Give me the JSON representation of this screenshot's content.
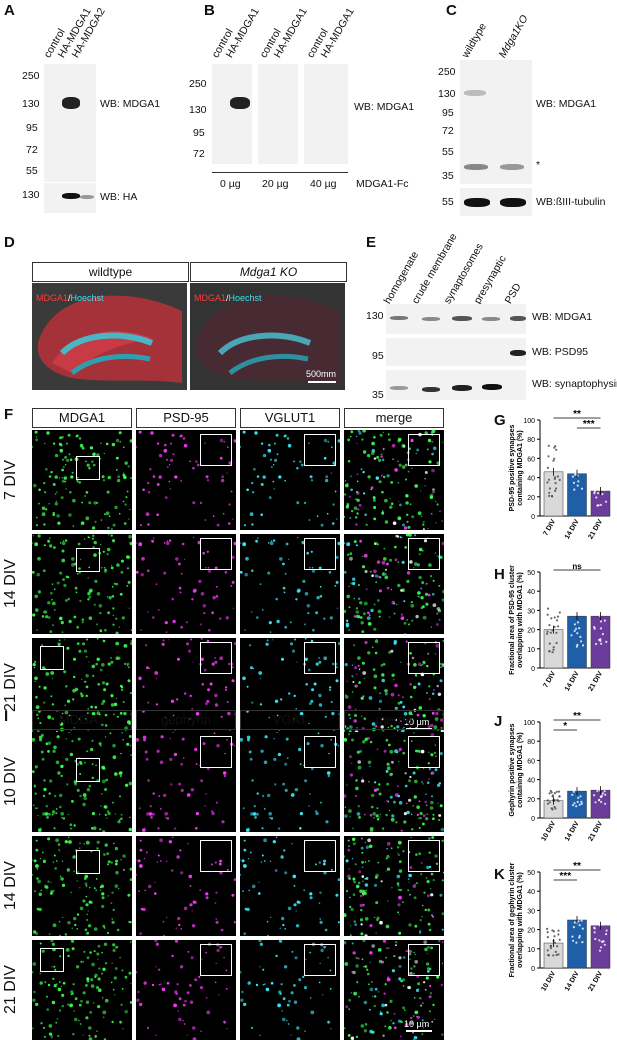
{
  "panels": {
    "A": {
      "letter": "A",
      "lanes": [
        "control",
        "HA-MDGA1",
        "HA-MDGA2"
      ],
      "markers": [
        "250",
        "130",
        "95",
        "72",
        "55"
      ],
      "marker2": "130",
      "wb1": "WB: MDGA1",
      "wb2": "WB: HA"
    },
    "B": {
      "letter": "B",
      "lanes": [
        "control",
        "HA-MDGA1",
        "control",
        "HA-MDGA1",
        "control",
        "HA-MDGA1"
      ],
      "markers": [
        "250",
        "130",
        "95",
        "72"
      ],
      "wb": "WB: MDGA1",
      "conc": [
        "0 µg",
        "20 µg",
        "40 µg"
      ],
      "fc": "MDGA1-Fc"
    },
    "C": {
      "letter": "C",
      "lanes": [
        "wildtype",
        "Mdga1KO"
      ],
      "markers": [
        "250",
        "130",
        "95",
        "72",
        "55",
        "35"
      ],
      "marker2": "55",
      "wb1": "WB: MDGA1",
      "star": "*",
      "wb2": "WB:ßIII-tubulin"
    },
    "D": {
      "letter": "D",
      "wt": "wildtype",
      "ko": "Mdga1 KO",
      "stain_red": "MDGA1",
      "stain_sep": "/",
      "stain_blue": "Hoechst",
      "scale": "500mm"
    },
    "E": {
      "letter": "E",
      "lanes": [
        "homogenate",
        "crude membrane",
        "synaptosomes",
        "presynaptic",
        "PSD"
      ],
      "markers": [
        "130",
        "95",
        "35"
      ],
      "wb": [
        "WB: MDGA1",
        "WB: PSD95",
        "WB: synaptophysin"
      ]
    },
    "F": {
      "letter": "F",
      "cols": [
        "MDGA1",
        "PSD-95",
        "VGLUT1",
        "merge"
      ],
      "rows": [
        "7 DIV",
        "14 DIV",
        "21 DIV"
      ],
      "scale": "10 µm"
    },
    "I": {
      "letter": "I",
      "cols": [
        "MDGA1",
        "gephyrin",
        "VGAT",
        "merge"
      ],
      "rows": [
        "10 DIV",
        "14 DIV",
        "21 DIV"
      ],
      "scale": "10 µm"
    },
    "G": {
      "letter": "G"
    },
    "H": {
      "letter": "H"
    },
    "J": {
      "letter": "J"
    },
    "K": {
      "letter": "K"
    }
  },
  "chart_data": [
    {
      "type": "bar",
      "panel": "G",
      "categories": [
        "7 DIV",
        "14 DIV",
        "21 DIV"
      ],
      "values": [
        46,
        44,
        26
      ],
      "ylabel": "PSD-95 positive synapses containing MDGA1 (%)",
      "ylim": [
        0,
        100
      ],
      "yticks": [
        0,
        20,
        40,
        60,
        80,
        100
      ],
      "significance": [
        {
          "between": [
            "7 DIV",
            "21 DIV"
          ],
          "label": "**"
        },
        {
          "between": [
            "14 DIV",
            "21 DIV"
          ],
          "label": "***"
        }
      ],
      "colors": [
        "#d9d9d9",
        "#1f5fa8",
        "#6a3d9a"
      ]
    },
    {
      "type": "bar",
      "panel": "H",
      "categories": [
        "7 DIV",
        "14 DIV",
        "21 DIV"
      ],
      "values": [
        20,
        27,
        27
      ],
      "ylabel": "Fractional area of PSD-95 cluster overlapping with MDGA1 (%)",
      "ylim": [
        0,
        50
      ],
      "yticks": [
        0,
        10,
        20,
        30,
        40,
        50
      ],
      "significance": [
        {
          "between": [
            "7 DIV",
            "21 DIV"
          ],
          "label": "ns"
        }
      ],
      "colors": [
        "#d9d9d9",
        "#1f5fa8",
        "#6a3d9a"
      ]
    },
    {
      "type": "bar",
      "panel": "J",
      "categories": [
        "10 DIV",
        "14 DIV",
        "21 DIV"
      ],
      "values": [
        18,
        28,
        29
      ],
      "ylabel": "Gephyrin positive synapses containing MDGA1 (%)",
      "ylim": [
        0,
        100
      ],
      "yticks": [
        0,
        20,
        40,
        60,
        80,
        100
      ],
      "significance": [
        {
          "between": [
            "10 DIV",
            "21 DIV"
          ],
          "label": "**"
        },
        {
          "between": [
            "10 DIV",
            "14 DIV"
          ],
          "label": "*"
        }
      ],
      "colors": [
        "#d9d9d9",
        "#1f5fa8",
        "#6a3d9a"
      ]
    },
    {
      "type": "bar",
      "panel": "K",
      "categories": [
        "10 DIV",
        "14 DIV",
        "21 DIV"
      ],
      "values": [
        13,
        25,
        22
      ],
      "ylabel": "Fractional area of gephyrin cluster overlapping with MDGA1 (%)",
      "ylim": [
        0,
        50
      ],
      "yticks": [
        0,
        10,
        20,
        30,
        40,
        50
      ],
      "significance": [
        {
          "between": [
            "10 DIV",
            "21 DIV"
          ],
          "label": "**"
        },
        {
          "between": [
            "10 DIV",
            "14 DIV"
          ],
          "label": "***"
        }
      ],
      "colors": [
        "#d9d9d9",
        "#1f5fa8",
        "#6a3d9a"
      ]
    }
  ]
}
